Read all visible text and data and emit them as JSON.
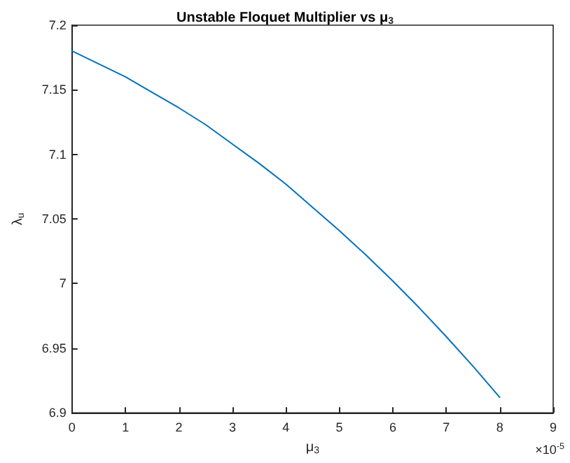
{
  "chart_data": {
    "type": "line",
    "title": "Unstable Floquet Multiplier vs μ$_{3}$",
    "xlabel": "μ$_{3}$",
    "ylabel": "λ$_{u}$",
    "annotations": [
      "×10$^{-5}$"
    ],
    "x": [
      0,
      0.5,
      1,
      1.5,
      2,
      2.5,
      3,
      3.5,
      4,
      4.5,
      5,
      5.5,
      6,
      6.5,
      7,
      7.5,
      8
    ],
    "series": [
      {
        "color": "#0072bd",
        "values": [
          7.18,
          7.17,
          7.16,
          7.148,
          7.136,
          7.123,
          7.108,
          7.093,
          7.077,
          7.059,
          7.041,
          7.022,
          7.002,
          6.981,
          6.959,
          6.936,
          6.912
        ]
      }
    ],
    "xlim": [
      0,
      9
    ],
    "xticks": [
      0,
      1,
      2,
      3,
      4,
      5,
      6,
      7,
      8,
      9
    ],
    "ylim": [
      6.9,
      7.2
    ],
    "yticks": [
      6.9,
      6.95,
      7,
      7.05,
      7.1,
      7.15,
      7.2
    ],
    "grid": false,
    "marker": "none",
    "line_style": "solid"
  }
}
